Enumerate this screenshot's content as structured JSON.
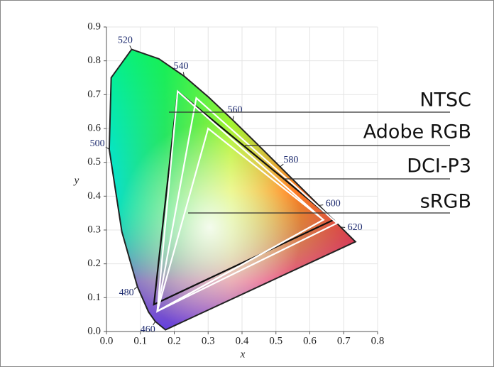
{
  "chart_data": {
    "type": "gamut",
    "x_label": "x",
    "y_label": "y",
    "xlim": [
      0,
      0.8
    ],
    "ylim": [
      0,
      0.9
    ],
    "xticks": [
      {
        "value": 0,
        "label": "0.0"
      },
      0.1,
      0.2,
      0.3,
      0.4,
      0.5,
      0.6,
      0.7,
      0.8
    ],
    "yticks": [
      {
        "value": 0,
        "label": "0.0"
      },
      0.1,
      0.2,
      0.3,
      0.4,
      0.5,
      0.6,
      0.7,
      0.8,
      0.9
    ],
    "grid": true,
    "locus": {
      "x": [
        0.1741,
        0.144,
        0.1241,
        0.0913,
        0.0454,
        0.0082,
        0.0139,
        0.0743,
        0.1547,
        0.2296,
        0.3016,
        0.3731,
        0.4441,
        0.5125,
        0.5752,
        0.627,
        0.6658,
        0.6915,
        0.719,
        0.7347
      ],
      "y": [
        0.005,
        0.0297,
        0.0578,
        0.1327,
        0.295,
        0.5384,
        0.7502,
        0.8338,
        0.8059,
        0.7543,
        0.6923,
        0.6245,
        0.5547,
        0.4866,
        0.4242,
        0.3725,
        0.334,
        0.3083,
        0.2809,
        0.2653
      ]
    },
    "wavelength_labels": {
      "values": [
        460,
        480,
        500,
        520,
        540,
        560,
        580,
        600,
        620
      ],
      "x": [
        0.144,
        0.0913,
        0.0082,
        0.0743,
        0.2296,
        0.3731,
        0.5125,
        0.627,
        0.6915
      ],
      "y": [
        0.0297,
        0.1327,
        0.5384,
        0.8338,
        0.7543,
        0.6245,
        0.4866,
        0.3725,
        0.3083
      ]
    },
    "series": [
      {
        "name": "NTSC",
        "color": "#111111",
        "x": [
          0.67,
          0.21,
          0.14
        ],
        "y": [
          0.33,
          0.71,
          0.08
        ]
      },
      {
        "name": "Adobe RGB",
        "color": "#ffffff",
        "x": [
          0.64,
          0.21,
          0.15
        ],
        "y": [
          0.33,
          0.71,
          0.06
        ]
      },
      {
        "name": "DCI-P3",
        "color": "#ffffff",
        "x": [
          0.68,
          0.265,
          0.15
        ],
        "y": [
          0.32,
          0.69,
          0.06
        ]
      },
      {
        "name": "sRGB",
        "color": "#ffffff",
        "x": [
          0.64,
          0.3,
          0.15
        ],
        "y": [
          0.33,
          0.6,
          0.06
        ]
      }
    ]
  }
}
